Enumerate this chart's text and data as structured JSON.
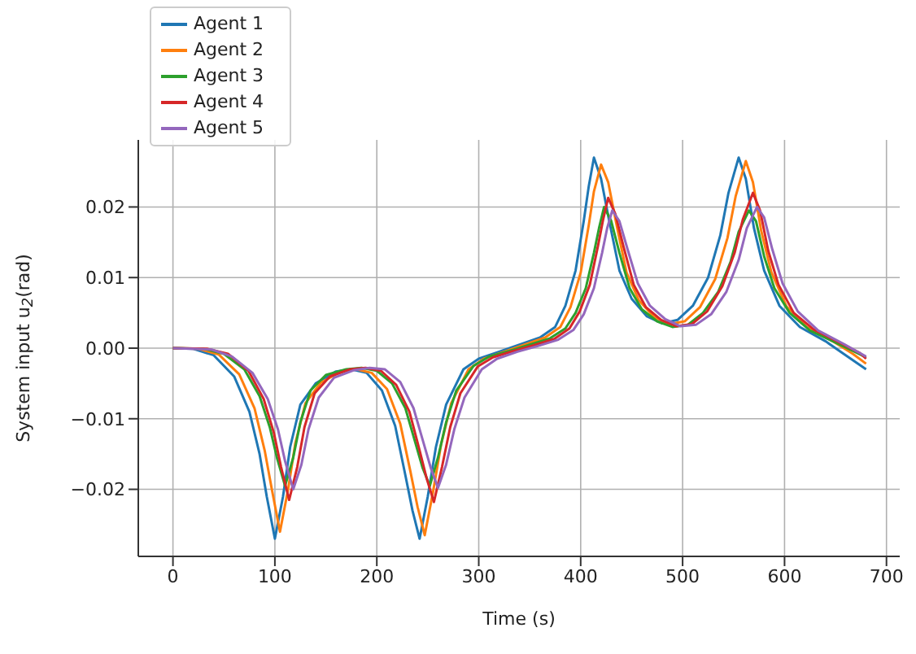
{
  "chart_data": {
    "type": "line",
    "xlabel": "Time (s)",
    "ylabel": "System input u$_{2}$(rad)",
    "xlim": [
      -34,
      713
    ],
    "xticks": [
      0,
      100,
      200,
      300,
      400,
      500,
      600,
      700
    ],
    "ylim": [
      -0.0295,
      0.0295
    ],
    "yticks": [
      {
        "value": -0.02,
        "label": "−0.02"
      },
      {
        "value": -0.01,
        "label": "−0.01"
      },
      {
        "value": 0,
        "label": "0.00"
      },
      {
        "value": 0.01,
        "label": "0.01"
      },
      {
        "value": 0.02,
        "label": "0.02"
      }
    ],
    "grid": true,
    "legend": "top left",
    "marker": "none",
    "line_style": "solid",
    "series": [
      {
        "name": "Agent 1",
        "color": "#1f77b4",
        "x": [
          0,
          20,
          40,
          60,
          75,
          85,
          92,
          100,
          108,
          115,
          125,
          140,
          160,
          175,
          190,
          205,
          218,
          228,
          235,
          242,
          250,
          258,
          268,
          285,
          300,
          320,
          340,
          360,
          375,
          385,
          395,
          403,
          408,
          413,
          420,
          428,
          438,
          450,
          465,
          480,
          495,
          510,
          525,
          537,
          545,
          555,
          562,
          570,
          580,
          595,
          615,
          640,
          660,
          680
        ],
        "values": [
          0,
          -0.0001,
          -0.001,
          -0.004,
          -0.009,
          -0.015,
          -0.021,
          -0.027,
          -0.021,
          -0.014,
          -0.008,
          -0.005,
          -0.0033,
          -0.003,
          -0.0035,
          -0.006,
          -0.011,
          -0.018,
          -0.023,
          -0.027,
          -0.021,
          -0.014,
          -0.008,
          -0.003,
          -0.0015,
          -0.0005,
          0.0005,
          0.0015,
          0.003,
          0.006,
          0.011,
          0.018,
          0.023,
          0.027,
          0.024,
          0.018,
          0.011,
          0.007,
          0.0045,
          0.0035,
          0.004,
          0.006,
          0.01,
          0.016,
          0.022,
          0.027,
          0.024,
          0.017,
          0.011,
          0.006,
          0.003,
          0.001,
          -0.001,
          -0.003
        ]
      },
      {
        "name": "Agent 2",
        "color": "#ff7f0e",
        "x": [
          0,
          25,
          45,
          65,
          80,
          90,
          97,
          105,
          113,
          120,
          130,
          145,
          165,
          180,
          195,
          210,
          223,
          233,
          240,
          247,
          255,
          263,
          273,
          290,
          305,
          325,
          345,
          365,
          380,
          390,
          400,
          408,
          413,
          420,
          427,
          435,
          445,
          457,
          472,
          487,
          502,
          517,
          532,
          544,
          552,
          562,
          569,
          577,
          587,
          602,
          622,
          647,
          667,
          680
        ],
        "values": [
          0,
          -0.0001,
          -0.0009,
          -0.0037,
          -0.0085,
          -0.0145,
          -0.02,
          -0.026,
          -0.02,
          -0.0135,
          -0.0078,
          -0.0049,
          -0.0033,
          -0.003,
          -0.0035,
          -0.0058,
          -0.0107,
          -0.0175,
          -0.0225,
          -0.0265,
          -0.0205,
          -0.0137,
          -0.0078,
          -0.003,
          -0.0015,
          -0.0005,
          0.0005,
          0.0015,
          0.003,
          0.0058,
          0.0107,
          0.0175,
          0.0222,
          0.026,
          0.0235,
          0.0176,
          0.0107,
          0.0068,
          0.0044,
          0.0034,
          0.0038,
          0.0058,
          0.0098,
          0.0156,
          0.0215,
          0.0265,
          0.0235,
          0.0167,
          0.0108,
          0.0059,
          0.003,
          0.001,
          -0.0008,
          -0.0022
        ]
      },
      {
        "name": "Agent 3",
        "color": "#2ca02c",
        "x": [
          0,
          30,
          50,
          70,
          85,
          95,
          102,
          110,
          118,
          125,
          135,
          150,
          170,
          185,
          200,
          215,
          228,
          238,
          245,
          252,
          260,
          268,
          278,
          295,
          310,
          330,
          350,
          370,
          385,
          395,
          405,
          413,
          418,
          423,
          430,
          438,
          448,
          460,
          475,
          490,
          505,
          520,
          535,
          547,
          555,
          565,
          572,
          580,
          590,
          605,
          625,
          650,
          670,
          680
        ],
        "values": [
          0,
          -0.0001,
          -0.0008,
          -0.003,
          -0.0068,
          -0.0112,
          -0.0155,
          -0.0195,
          -0.0155,
          -0.0105,
          -0.006,
          -0.0038,
          -0.003,
          -0.0028,
          -0.0032,
          -0.005,
          -0.0085,
          -0.0135,
          -0.017,
          -0.0195,
          -0.0155,
          -0.0105,
          -0.006,
          -0.0025,
          -0.0012,
          -0.0004,
          0.0005,
          0.0014,
          0.0028,
          0.005,
          0.0085,
          0.0135,
          0.017,
          0.02,
          0.018,
          0.0135,
          0.0085,
          0.0055,
          0.0038,
          0.003,
          0.0033,
          0.005,
          0.008,
          0.0122,
          0.0165,
          0.0195,
          0.018,
          0.013,
          0.0085,
          0.005,
          0.0025,
          0.0008,
          -0.0006,
          -0.0013
        ]
      },
      {
        "name": "Agent 4",
        "color": "#d62728",
        "x": [
          0,
          34,
          54,
          74,
          89,
          99,
          106,
          114,
          122,
          129,
          139,
          154,
          174,
          189,
          204,
          219,
          232,
          242,
          249,
          256,
          264,
          272,
          282,
          299,
          314,
          334,
          354,
          374,
          389,
          399,
          409,
          417,
          422,
          427,
          434,
          442,
          452,
          464,
          479,
          494,
          509,
          524,
          539,
          551,
          559,
          569,
          576,
          584,
          594,
          609,
          629,
          654,
          674,
          680
        ],
        "values": [
          0,
          -0.0001,
          -0.0008,
          -0.0032,
          -0.0072,
          -0.012,
          -0.0168,
          -0.0215,
          -0.0168,
          -0.0112,
          -0.0064,
          -0.004,
          -0.003,
          -0.0028,
          -0.0032,
          -0.0052,
          -0.009,
          -0.0145,
          -0.0185,
          -0.0218,
          -0.0168,
          -0.0112,
          -0.0064,
          -0.0026,
          -0.0013,
          -0.0004,
          0.0004,
          0.0013,
          0.0028,
          0.0052,
          0.009,
          0.0145,
          0.0182,
          0.0213,
          0.019,
          0.0144,
          0.009,
          0.0058,
          0.004,
          0.0031,
          0.0034,
          0.0052,
          0.0088,
          0.0135,
          0.0182,
          0.022,
          0.0195,
          0.0138,
          0.009,
          0.005,
          0.0026,
          0.0008,
          -0.0007,
          -0.0015
        ]
      },
      {
        "name": "Agent 5",
        "color": "#9467bd",
        "x": [
          0,
          38,
          58,
          78,
          93,
          103,
          110,
          118,
          126,
          133,
          143,
          158,
          178,
          193,
          208,
          223,
          236,
          246,
          253,
          260,
          268,
          276,
          286,
          303,
          318,
          338,
          358,
          378,
          393,
          403,
          413,
          421,
          426,
          431,
          438,
          446,
          456,
          468,
          483,
          498,
          513,
          528,
          543,
          555,
          563,
          573,
          580,
          588,
          598,
          613,
          633,
          658,
          680
        ],
        "values": [
          0,
          -0.0002,
          -0.0012,
          -0.0035,
          -0.0072,
          -0.0115,
          -0.016,
          -0.02,
          -0.0165,
          -0.0115,
          -0.007,
          -0.0042,
          -0.0031,
          -0.0028,
          -0.003,
          -0.0048,
          -0.0085,
          -0.0135,
          -0.017,
          -0.0198,
          -0.0165,
          -0.0115,
          -0.007,
          -0.003,
          -0.0015,
          -0.0005,
          0.0003,
          0.0012,
          0.0026,
          0.0048,
          0.0085,
          0.0135,
          0.017,
          0.0195,
          0.018,
          0.014,
          0.0092,
          0.006,
          0.0041,
          0.0031,
          0.0033,
          0.0048,
          0.008,
          0.0125,
          0.017,
          0.02,
          0.0185,
          0.014,
          0.0092,
          0.0052,
          0.0025,
          0.0006,
          -0.0012
        ]
      }
    ]
  }
}
